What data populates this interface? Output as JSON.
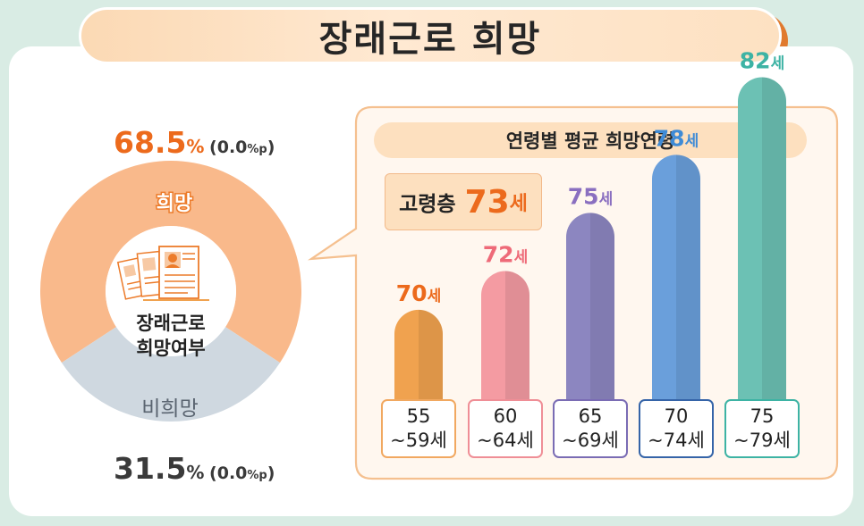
{
  "title": "장래근로 희망",
  "donut": {
    "center_lines": [
      "장래근로",
      "희망여부"
    ],
    "want": {
      "label": "희망",
      "value": "68.5",
      "pct": "%",
      "change_open": "(0.0",
      "change_unit": "%p",
      "change_close": ")",
      "color": "#f9b98b"
    },
    "not_want": {
      "label": "비희망",
      "value": "31.5",
      "pct": "%",
      "change_open": "(0.0",
      "change_unit": "%p",
      "change_close": ")",
      "color": "#cfd8e0"
    },
    "icon": "resume-documents-icon"
  },
  "panel": {
    "subtitle": "연령별 평균 희망연령",
    "highlight_label": "고령층",
    "highlight_value": "73",
    "highlight_unit": "세"
  },
  "chart_data": {
    "type": "bar",
    "categories": [
      "55 ~59세",
      "60 ~64세",
      "65 ~69세",
      "70 ~74세",
      "75 ~79세"
    ],
    "category_lines": [
      [
        "55",
        "~59세"
      ],
      [
        "60",
        "~64세"
      ],
      [
        "65",
        "~69세"
      ],
      [
        "70",
        "~74세"
      ],
      [
        "75",
        "~79세"
      ]
    ],
    "values": [
      70,
      72,
      75,
      78,
      82
    ],
    "value_unit": "세",
    "colors": [
      "#f0a24f",
      "#f49ba2",
      "#8c86c0",
      "#6a9fdb",
      "#6cc1b4"
    ],
    "label_colors": [
      "#ec6a1c",
      "#ee6a78",
      "#8a6fc0",
      "#3f8bd6",
      "#3db3a4"
    ],
    "border_colors": [
      "#f1a860",
      "#ef8e96",
      "#7a6cb4",
      "#3564a8",
      "#3db3a4"
    ],
    "title": "연령별 평균 희망연령"
  }
}
